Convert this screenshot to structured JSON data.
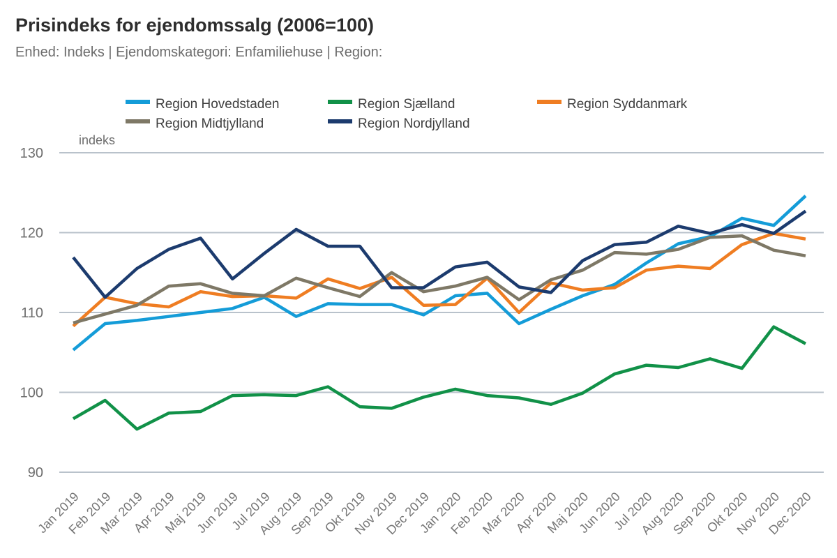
{
  "header": {
    "title": "Prisindeks for ejendomssalg (2006=100)",
    "subtitle": "Enhed: Indeks | Ejendomskategori: Enfamiliehuse | Region:"
  },
  "chart_data": {
    "type": "line",
    "title": "Prisindeks for ejendomssalg (2006=100)",
    "unit_label": "indeks",
    "ylim": [
      90,
      130
    ],
    "y_ticks": [
      130,
      120,
      110,
      100,
      90
    ],
    "grid": "horizontal",
    "legend_position": "top",
    "x_categories": [
      "Jan 2019",
      "Feb 2019",
      "Mar 2019",
      "Apr 2019",
      "Maj 2019",
      "Jun 2019",
      "Jul 2019",
      "Aug 2019",
      "Sep 2019",
      "Okt 2019",
      "Nov 2019",
      "Dec 2019",
      "Jan 2020",
      "Feb 2020",
      "Mar 2020",
      "Apr 2020",
      "Maj 2020",
      "Jun 2020",
      "Jul 2020",
      "Aug 2020",
      "Sep 2020",
      "Okt 2020",
      "Nov 2020",
      "Dec 2020"
    ],
    "series": [
      {
        "name": "Region Hovedstaden",
        "color": "#149CD8",
        "values": [
          105.3,
          108.6,
          109.0,
          109.5,
          110.0,
          110.5,
          111.9,
          109.5,
          111.1,
          111.0,
          111.0,
          109.7,
          112.1,
          112.4,
          108.6,
          110.4,
          112.1,
          113.5,
          116.2,
          118.6,
          119.5,
          121.8,
          120.9,
          124.6
        ]
      },
      {
        "name": "Region Sjælland",
        "color": "#119148",
        "values": [
          96.7,
          99.0,
          95.4,
          97.4,
          97.6,
          99.6,
          99.7,
          99.6,
          100.7,
          98.2,
          98.0,
          99.4,
          100.4,
          99.6,
          99.3,
          98.5,
          99.9,
          102.3,
          103.4,
          103.1,
          104.2,
          103.0,
          108.2,
          106.1
        ]
      },
      {
        "name": "Region Syddanmark",
        "color": "#EF7D22",
        "values": [
          108.3,
          111.9,
          111.1,
          110.7,
          112.6,
          112.0,
          112.1,
          111.8,
          114.2,
          113.0,
          114.4,
          110.9,
          111.0,
          114.3,
          110.0,
          113.7,
          112.8,
          113.1,
          115.3,
          115.8,
          115.5,
          118.5,
          119.9,
          119.2
        ]
      },
      {
        "name": "Region Midtjylland",
        "color": "#7E7866",
        "values": [
          108.7,
          109.8,
          110.9,
          113.3,
          113.6,
          112.4,
          112.1,
          114.3,
          113.1,
          112.0,
          115.0,
          112.6,
          113.3,
          114.4,
          111.6,
          114.1,
          115.3,
          117.5,
          117.3,
          117.9,
          119.4,
          119.6,
          117.8,
          117.1
        ]
      },
      {
        "name": "Region Nordjylland",
        "color": "#1C3B6E",
        "values": [
          116.9,
          111.9,
          115.5,
          117.9,
          119.3,
          114.2,
          117.4,
          120.4,
          118.3,
          118.3,
          113.1,
          113.1,
          115.7,
          116.3,
          113.2,
          112.5,
          116.5,
          118.5,
          118.8,
          120.8,
          119.9,
          121.0,
          119.9,
          122.7
        ]
      }
    ]
  }
}
